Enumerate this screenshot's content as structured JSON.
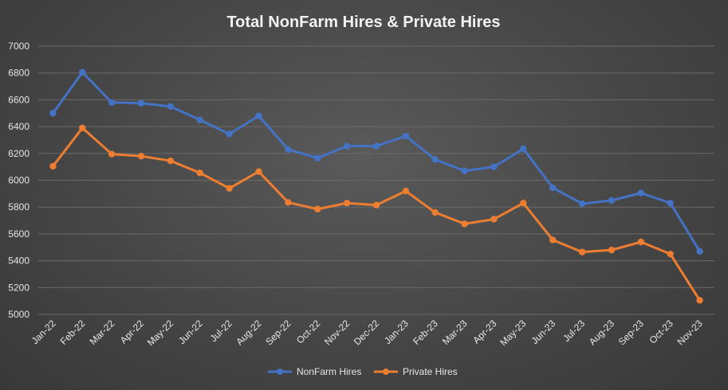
{
  "chart_data": {
    "type": "line",
    "title": "Total NonFarm Hires & Private Hires",
    "xlabel": "",
    "ylabel": "",
    "categories": [
      "Jan-22",
      "Feb-22",
      "Mar-22",
      "Apr-22",
      "May-22",
      "Jun-22",
      "Jul-22",
      "Aug-22",
      "Sep-22",
      "Oct-22",
      "Nov-22",
      "Dec-22",
      "Jan-23",
      "Feb-23",
      "Mar-23",
      "Apr-23",
      "May-23",
      "Jun-23",
      "Jul-23",
      "Aug-23",
      "Sep-23",
      "Oct-23",
      "Nov-23"
    ],
    "ylim": [
      5000,
      7000
    ],
    "yticks": [
      5000,
      5200,
      5400,
      5600,
      5800,
      6000,
      6200,
      6400,
      6600,
      6800,
      7000
    ],
    "grid": true,
    "legend_position": "bottom",
    "series": [
      {
        "name": "NonFarm Hires",
        "color": "#4472c4",
        "values": [
          6500,
          6805,
          6580,
          6575,
          6550,
          6450,
          6345,
          6480,
          6230,
          6165,
          6255,
          6255,
          6330,
          6155,
          6070,
          6100,
          6235,
          5945,
          5825,
          5850,
          5905,
          5830,
          5470
        ]
      },
      {
        "name": "Private Hires",
        "color": "#ed7d31",
        "values": [
          6105,
          6390,
          6195,
          6180,
          6145,
          6055,
          5940,
          6065,
          5835,
          5785,
          5830,
          5815,
          5920,
          5760,
          5675,
          5710,
          5830,
          5555,
          5465,
          5480,
          5540,
          5450,
          5105
        ]
      }
    ]
  }
}
